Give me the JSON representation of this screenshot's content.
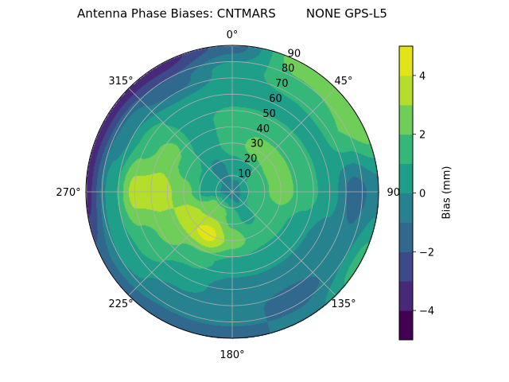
{
  "chart_data": {
    "type": "heatmap",
    "subtype": "polar-contour",
    "title": "Antenna Phase Biases: CNTMARS        NONE GPS-L5",
    "angular_ticks": [
      "0°",
      "45°",
      "90°",
      "135°",
      "180°",
      "225°",
      "270°",
      "315°"
    ],
    "radial_ticks": [
      "10",
      "20",
      "30",
      "40",
      "50",
      "60",
      "70",
      "80",
      "90"
    ],
    "radial_range": [
      0,
      90
    ],
    "theta_direction": "clockwise",
    "theta_zero": "north",
    "grid": true,
    "colorbar": {
      "label": "Bias (mm)",
      "range": [
        -5,
        5
      ],
      "levels": [
        -5,
        -4,
        -3,
        -2,
        -1,
        0,
        1,
        2,
        3,
        4,
        5
      ],
      "ticks": [
        -4,
        -2,
        0,
        2,
        4
      ],
      "tick_labels": [
        "−4",
        "−2",
        "0",
        "2",
        "4"
      ],
      "colormap": "viridis",
      "colors": [
        "#440154",
        "#482878",
        "#3e4989",
        "#31688e",
        "#26828e",
        "#1f9e89",
        "#35b779",
        "#6ece58",
        "#b5de2b",
        "#e2e418"
      ]
    },
    "azimuths": [
      0,
      30,
      60,
      90,
      120,
      150,
      180,
      210,
      240,
      270,
      300,
      330
    ],
    "zenith": [
      0,
      15,
      30,
      45,
      60,
      75,
      90
    ],
    "values": [
      [
        -0.5,
        0.5,
        1.5,
        1.5,
        0.5,
        0.5,
        -1.5
      ],
      [
        -0.5,
        0.5,
        2.5,
        1.5,
        0.5,
        1.5,
        3.0
      ],
      [
        -0.5,
        1.5,
        2.5,
        1.5,
        0.5,
        2.0,
        3.0
      ],
      [
        -0.5,
        1.5,
        2.5,
        1.5,
        0.5,
        -1.5,
        -0.5
      ],
      [
        -0.5,
        1.5,
        1.5,
        0.5,
        -0.5,
        -0.5,
        1.5
      ],
      [
        -0.5,
        0.5,
        1.5,
        0.5,
        -0.5,
        -1.5,
        -0.5
      ],
      [
        -0.5,
        1.5,
        2.5,
        0.5,
        -0.5,
        -0.5,
        -1.5
      ],
      [
        -0.5,
        2.5,
        4.5,
        1.5,
        0.5,
        -0.5,
        -1.5
      ],
      [
        -0.5,
        2.5,
        3.5,
        2.5,
        1.5,
        0.5,
        -1.5
      ],
      [
        -0.5,
        0.5,
        2.5,
        3.5,
        3.5,
        0.5,
        -3.5
      ],
      [
        -0.5,
        0.5,
        1.5,
        2.5,
        1.5,
        -0.5,
        -3.5
      ],
      [
        -0.5,
        -0.5,
        0.5,
        0.5,
        0.5,
        -1.5,
        -3.5
      ]
    ]
  }
}
